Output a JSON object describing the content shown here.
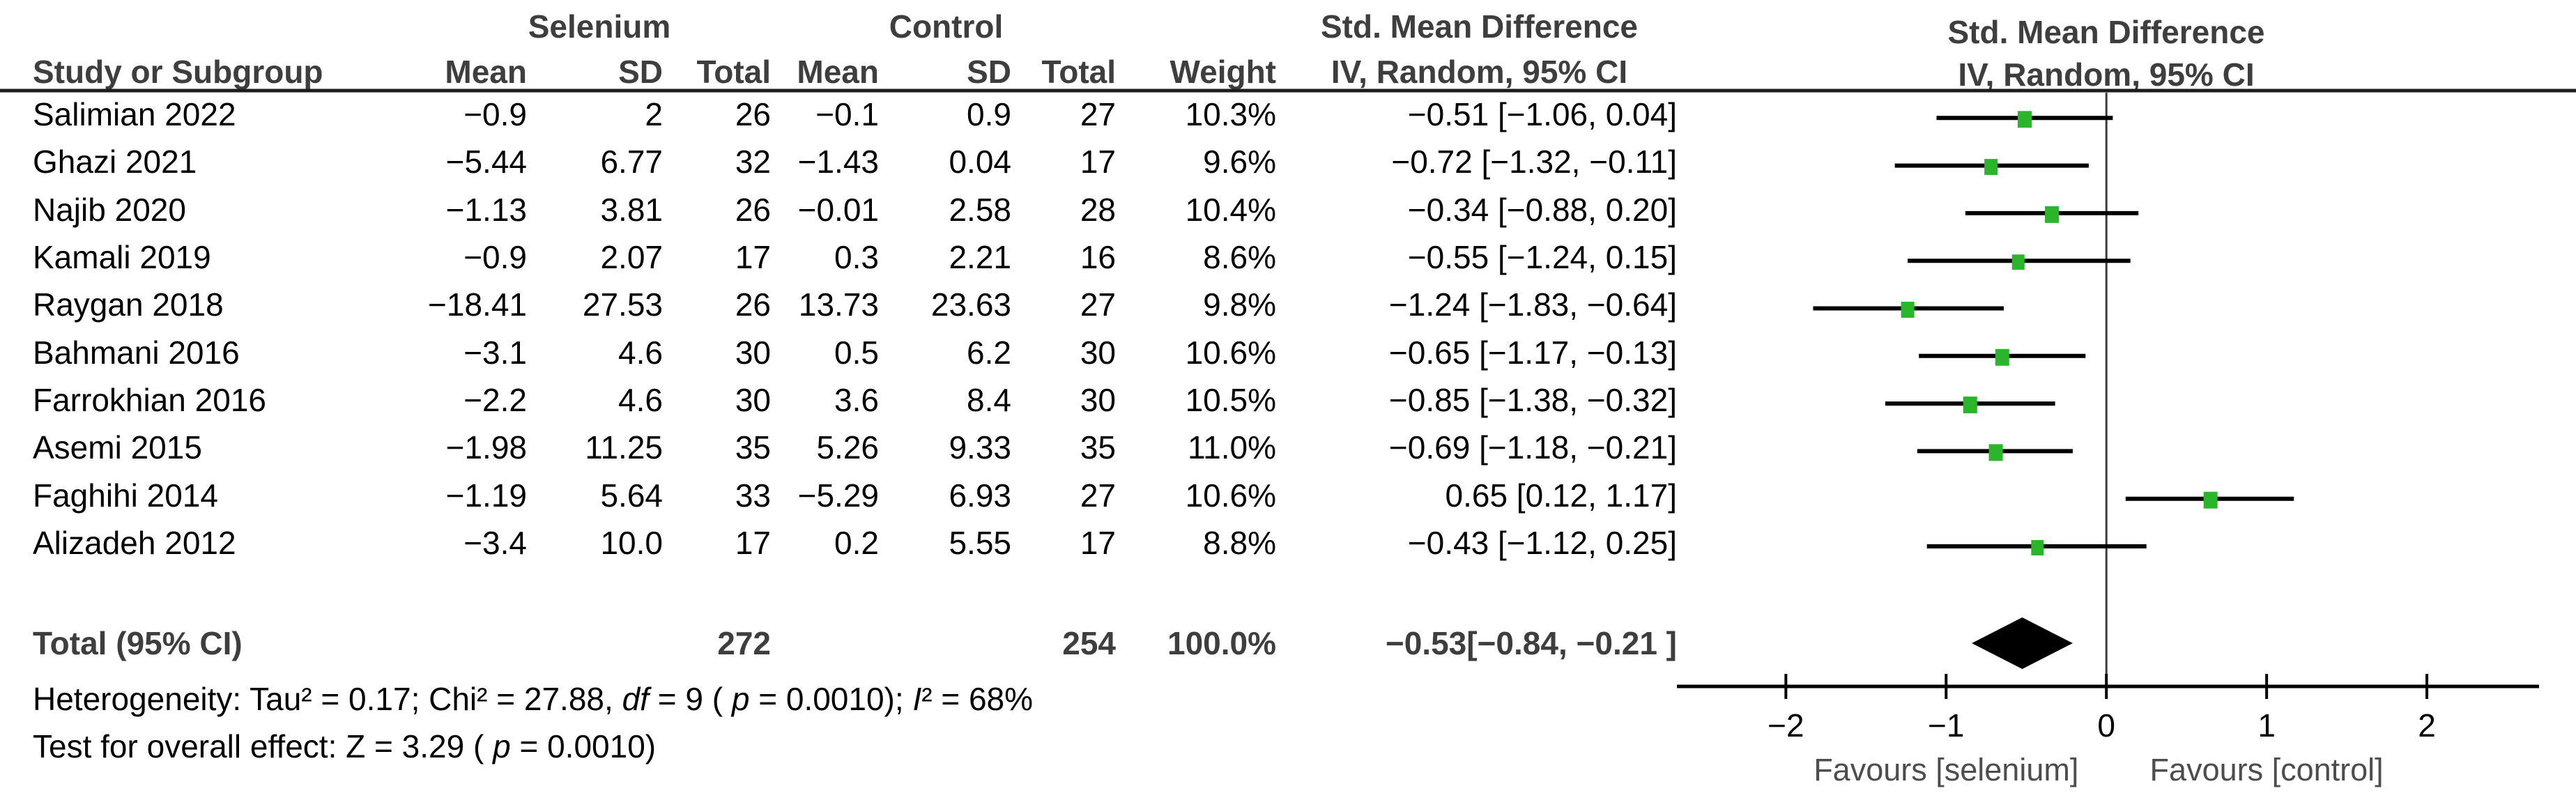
{
  "table": {
    "col_study": "Study or Subgroup",
    "group1_label": "Selenium",
    "group2_label": "Control",
    "col_mean": "Mean",
    "col_sd": "SD",
    "col_total": "Total",
    "col_weight": "Weight",
    "smd_header": "Std. Mean Difference",
    "smd_subheader": "IV, Random, 95% CI"
  },
  "plot": {
    "header": "Std. Mean Difference",
    "subheader": "IV, Random, 95% CI"
  },
  "footnotes": {
    "heterogeneity": [
      {
        "text": "Heterogeneity: Tau² = 0.17; Chi² = 27.88, "
      },
      {
        "text": "df",
        "italic": true
      },
      {
        "text": " = 9 ( "
      },
      {
        "text": "p",
        "italic": true
      },
      {
        "text": " = 0.0010); "
      },
      {
        "text": "I",
        "italic": true
      },
      {
        "text": "² = 68%"
      }
    ],
    "overall": [
      {
        "text": "Test for overall effect: Z = 3.29 ( "
      },
      {
        "text": "p",
        "italic": true
      },
      {
        "text": " = 0.0010)"
      }
    ]
  },
  "chart_data": {
    "type": "scatter",
    "subtype": "forest-plot",
    "title": "Std. Mean Difference",
    "method_label": "IV, Random, 95% CI",
    "studies": [
      {
        "name": "Salimian 2022",
        "s_mean": "−0.9",
        "s_sd": "2",
        "s_total": "26",
        "c_mean": "−0.1",
        "c_sd": "0.9",
        "c_total": "27",
        "weight": "10.3%",
        "ci_text": "−0.51 [−1.06, 0.04]",
        "est": -0.51,
        "lo": -1.06,
        "hi": 0.04,
        "w": 10.3
      },
      {
        "name": "Ghazi 2021",
        "s_mean": "−5.44",
        "s_sd": "6.77",
        "s_total": "32",
        "c_mean": "−1.43",
        "c_sd": "0.04",
        "c_total": "17",
        "weight": "9.6%",
        "ci_text": "−0.72 [−1.32, −0.11]",
        "est": -0.72,
        "lo": -1.32,
        "hi": -0.11,
        "w": 9.6
      },
      {
        "name": "Najib 2020",
        "s_mean": "−1.13",
        "s_sd": "3.81",
        "s_total": "26",
        "c_mean": "−0.01",
        "c_sd": "2.58",
        "c_total": "28",
        "weight": "10.4%",
        "ci_text": "−0.34 [−0.88, 0.20]",
        "est": -0.34,
        "lo": -0.88,
        "hi": 0.2,
        "w": 10.4
      },
      {
        "name": "Kamali 2019",
        "s_mean": "−0.9",
        "s_sd": "2.07",
        "s_total": "17",
        "c_mean": "0.3",
        "c_sd": "2.21",
        "c_total": "16",
        "weight": "8.6%",
        "ci_text": "−0.55 [−1.24, 0.15]",
        "est": -0.55,
        "lo": -1.24,
        "hi": 0.15,
        "w": 8.6
      },
      {
        "name": "Raygan 2018",
        "s_mean": "−18.41",
        "s_sd": "27.53",
        "s_total": "26",
        "c_mean": "13.73",
        "c_sd": "23.63",
        "c_total": "27",
        "weight": "9.8%",
        "ci_text": "−1.24 [−1.83, −0.64]",
        "est": -1.24,
        "lo": -1.83,
        "hi": -0.64,
        "w": 9.8
      },
      {
        "name": "Bahmani 2016",
        "s_mean": "−3.1",
        "s_sd": "4.6",
        "s_total": "30",
        "c_mean": "0.5",
        "c_sd": "6.2",
        "c_total": "30",
        "weight": "10.6%",
        "ci_text": "−0.65 [−1.17, −0.13]",
        "est": -0.65,
        "lo": -1.17,
        "hi": -0.13,
        "w": 10.6
      },
      {
        "name": "Farrokhian 2016",
        "s_mean": "−2.2",
        "s_sd": "4.6",
        "s_total": "30",
        "c_mean": "3.6",
        "c_sd": "8.4",
        "c_total": "30",
        "weight": "10.5%",
        "ci_text": "−0.85 [−1.38, −0.32]",
        "est": -0.85,
        "lo": -1.38,
        "hi": -0.32,
        "w": 10.5
      },
      {
        "name": "Asemi 2015",
        "s_mean": "−1.98",
        "s_sd": "11.25",
        "s_total": "35",
        "c_mean": "5.26",
        "c_sd": "9.33",
        "c_total": "35",
        "weight": "11.0%",
        "ci_text": "−0.69 [−1.18, −0.21]",
        "est": -0.69,
        "lo": -1.18,
        "hi": -0.21,
        "w": 11.0
      },
      {
        "name": "Faghihi 2014",
        "s_mean": "−1.19",
        "s_sd": "5.64",
        "s_total": "33",
        "c_mean": "−5.29",
        "c_sd": "6.93",
        "c_total": "27",
        "weight": "10.6%",
        "ci_text": "0.65 [0.12, 1.17]",
        "est": 0.65,
        "lo": 0.12,
        "hi": 1.17,
        "w": 10.6
      },
      {
        "name": "Alizadeh 2012",
        "s_mean": "−3.4",
        "s_sd": "10.0",
        "s_total": "17",
        "c_mean": "0.2",
        "c_sd": "5.55",
        "c_total": "17",
        "weight": "8.8%",
        "ci_text": "−0.43 [−1.12, 0.25]",
        "est": -0.43,
        "lo": -1.12,
        "hi": 0.25,
        "w": 8.8
      }
    ],
    "total": {
      "label": "Total (95% CI)",
      "s_total": "272",
      "c_total": "254",
      "weight": "100.0%",
      "ci_text": "−0.53[−0.84, −0.21 ]",
      "est": -0.53,
      "lo": -0.84,
      "hi": -0.21
    },
    "axis": {
      "ticks": [
        -2,
        -1,
        0,
        1,
        2
      ],
      "tick_labels": [
        "−2",
        "−1",
        "0",
        "1",
        "2"
      ],
      "xlim": [
        -2.68,
        2.7
      ],
      "zero_line": 0
    },
    "favours_left": "Favours [selenium]",
    "favours_right": "Favours [control]",
    "marker_color": "#2bb52b",
    "line_color": "#000000",
    "diamond_color": "#000000"
  }
}
